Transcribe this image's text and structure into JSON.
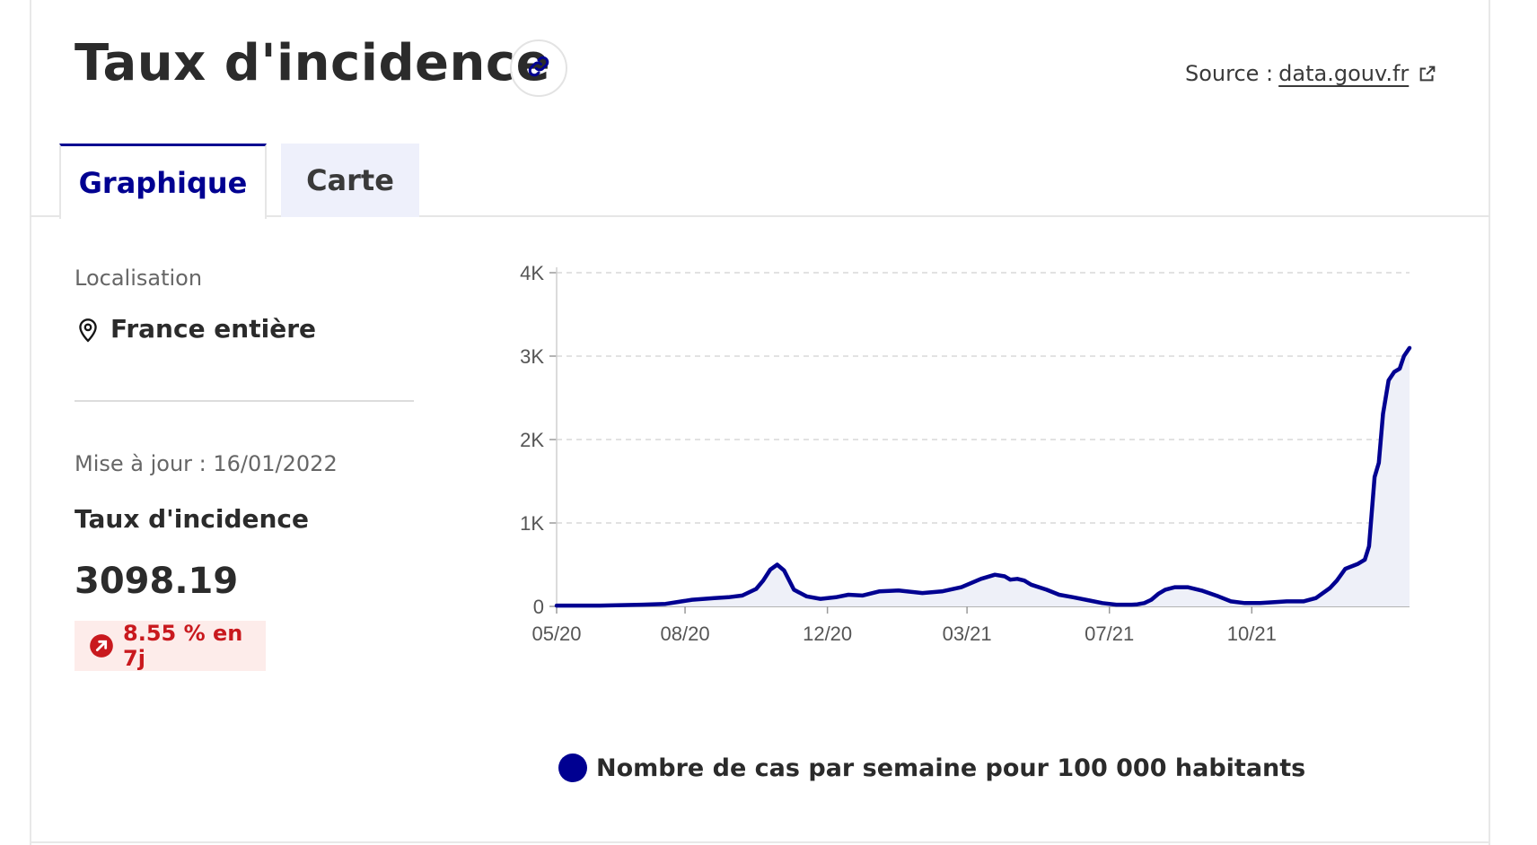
{
  "header": {
    "title": "Taux d'incidence",
    "source_prefix": "Source :",
    "source_link": "data.gouv.fr"
  },
  "tabs": [
    {
      "label": "Graphique",
      "active": true
    },
    {
      "label": "Carte",
      "active": false
    }
  ],
  "sidebar": {
    "location_label": "Localisation",
    "location_value": "France entière",
    "updated": "Mise à jour : 16/01/2022",
    "metric_label": "Taux d'incidence",
    "metric_value": "3098.19",
    "trend": "8.55 % en 7j"
  },
  "colors": {
    "accent": "#000091",
    "trend_up": "#c9191e",
    "trend_bg": "#fdecea",
    "area_fill": "#eef0f8"
  },
  "icons": {
    "link": "link-icon",
    "external": "external-link-icon",
    "location": "map-pin-icon",
    "trend": "arrow-up-right-icon"
  },
  "chart_data": {
    "type": "area",
    "x_tick_labels": [
      "05/20",
      "08/20",
      "12/20",
      "03/21",
      "07/21",
      "10/21"
    ],
    "y_tick_labels": [
      "0",
      "1K",
      "2K",
      "3K",
      "4K"
    ],
    "ylim": [
      0,
      4000
    ],
    "grid": true,
    "legend_position": "bottom",
    "series": [
      {
        "name": "Nombre de cas par semaine pour 100 000 habitants",
        "color": "#000091",
        "x": [
          "2020-05-15",
          "2020-06-15",
          "2020-07-15",
          "2020-08-01",
          "2020-08-20",
          "2020-09-05",
          "2020-09-15",
          "2020-09-25",
          "2020-10-05",
          "2020-10-10",
          "2020-10-15",
          "2020-10-20",
          "2020-10-25",
          "2020-11-01",
          "2020-11-10",
          "2020-11-20",
          "2020-12-01",
          "2020-12-10",
          "2020-12-20",
          "2021-01-01",
          "2021-01-15",
          "2021-02-01",
          "2021-02-15",
          "2021-03-01",
          "2021-03-15",
          "2021-03-25",
          "2021-04-01",
          "2021-04-05",
          "2021-04-10",
          "2021-04-15",
          "2021-04-20",
          "2021-05-01",
          "2021-05-10",
          "2021-05-20",
          "2021-06-01",
          "2021-06-10",
          "2021-06-20",
          "2021-07-01",
          "2021-07-05",
          "2021-07-10",
          "2021-07-15",
          "2021-07-20",
          "2021-07-25",
          "2021-08-01",
          "2021-08-10",
          "2021-08-20",
          "2021-09-01",
          "2021-09-10",
          "2021-09-20",
          "2021-10-01",
          "2021-10-10",
          "2021-10-20",
          "2021-11-01",
          "2021-11-10",
          "2021-11-20",
          "2021-11-25",
          "2021-12-01",
          "2021-12-10",
          "2021-12-15",
          "2021-12-18",
          "2021-12-22",
          "2021-12-25",
          "2021-12-28",
          "2022-01-01",
          "2022-01-05",
          "2022-01-09",
          "2022-01-12",
          "2022-01-16"
        ],
        "values": [
          10,
          10,
          20,
          30,
          80,
          100,
          110,
          130,
          210,
          310,
          440,
          500,
          430,
          200,
          120,
          90,
          110,
          140,
          130,
          180,
          190,
          160,
          180,
          230,
          330,
          380,
          360,
          320,
          330,
          310,
          260,
          200,
          140,
          110,
          70,
          40,
          20,
          20,
          25,
          40,
          80,
          150,
          200,
          230,
          230,
          190,
          120,
          60,
          40,
          40,
          50,
          60,
          60,
          100,
          220,
          310,
          450,
          510,
          560,
          720,
          1550,
          1720,
          2310,
          2710,
          2810,
          2850,
          3000,
          3098
        ]
      }
    ]
  },
  "chart_labels": {
    "y_ticks": [
      {
        "value": 0,
        "label": "0"
      },
      {
        "value": 1000,
        "label": "1K"
      },
      {
        "value": 2000,
        "label": "2K"
      },
      {
        "value": 3000,
        "label": "3K"
      },
      {
        "value": 4000,
        "label": "4K"
      }
    ],
    "x_ticks": [
      {
        "date": "2020-05-15",
        "label": "05/20"
      },
      {
        "date": "2020-08-15",
        "label": "08/20"
      },
      {
        "date": "2020-11-25",
        "label": "12/20"
      },
      {
        "date": "2021-03-05",
        "label": "03/21"
      },
      {
        "date": "2021-06-15",
        "label": "07/21"
      },
      {
        "date": "2021-09-25",
        "label": "10/21"
      }
    ]
  }
}
